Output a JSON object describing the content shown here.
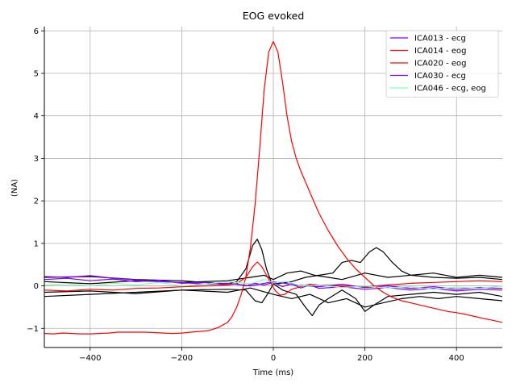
{
  "chart_data": {
    "type": "line",
    "title": "EOG evoked",
    "xlabel": "Time (ms)",
    "ylabel": "(NA)",
    "xlim": [
      -500,
      500
    ],
    "ylim": [
      -1.45,
      6.1
    ],
    "xticks": [
      -400,
      -200,
      0,
      200,
      400
    ],
    "yticks": [
      -1,
      0,
      1,
      2,
      3,
      4,
      5,
      6
    ],
    "xtick_labels": [
      "−400",
      "−200",
      "0",
      "200",
      "400"
    ],
    "ytick_labels": [
      "−1",
      "0",
      "1",
      "2",
      "3",
      "4",
      "5",
      "6"
    ],
    "grid": true,
    "legend_position": "top-right",
    "series": [
      {
        "name": "ICA013 - ecg",
        "color": "#8000ff",
        "points": [
          [
            -500,
            0.15
          ],
          [
            -450,
            0.18
          ],
          [
            -400,
            0.12
          ],
          [
            -350,
            0.16
          ],
          [
            -300,
            0.1
          ],
          [
            -250,
            0.13
          ],
          [
            -200,
            0.06
          ],
          [
            -150,
            0.08
          ],
          [
            -100,
            0.02
          ],
          [
            -80,
            0.05
          ],
          [
            -60,
            0.0
          ],
          [
            -40,
            0.06
          ],
          [
            -20,
            0.02
          ],
          [
            0,
            0.08
          ],
          [
            20,
            -0.02
          ],
          [
            40,
            0.05
          ],
          [
            60,
            -0.05
          ],
          [
            80,
            0.02
          ],
          [
            100,
            -0.06
          ],
          [
            150,
            -0.02
          ],
          [
            200,
            -0.08
          ],
          [
            250,
            -0.04
          ],
          [
            300,
            -0.1
          ],
          [
            350,
            -0.06
          ],
          [
            400,
            -0.12
          ],
          [
            450,
            -0.08
          ],
          [
            500,
            -0.1
          ]
        ]
      },
      {
        "name": "ICA014 - eog",
        "color": "#ff0000",
        "points": [
          [
            -500,
            -1.12
          ],
          [
            -480,
            -1.13
          ],
          [
            -460,
            -1.11
          ],
          [
            -440,
            -1.12
          ],
          [
            -420,
            -1.13
          ],
          [
            -400,
            -1.13
          ],
          [
            -380,
            -1.12
          ],
          [
            -360,
            -1.11
          ],
          [
            -340,
            -1.09
          ],
          [
            -320,
            -1.09
          ],
          [
            -300,
            -1.09
          ],
          [
            -280,
            -1.09
          ],
          [
            -260,
            -1.1
          ],
          [
            -240,
            -1.11
          ],
          [
            -220,
            -1.12
          ],
          [
            -200,
            -1.11
          ],
          [
            -180,
            -1.09
          ],
          [
            -160,
            -1.07
          ],
          [
            -140,
            -1.05
          ],
          [
            -120,
            -0.98
          ],
          [
            -100,
            -0.86
          ],
          [
            -90,
            -0.72
          ],
          [
            -80,
            -0.5
          ],
          [
            -70,
            -0.2
          ],
          [
            -60,
            0.2
          ],
          [
            -50,
            0.9
          ],
          [
            -40,
            1.9
          ],
          [
            -30,
            3.2
          ],
          [
            -20,
            4.6
          ],
          [
            -10,
            5.5
          ],
          [
            0,
            5.75
          ],
          [
            10,
            5.5
          ],
          [
            20,
            4.8
          ],
          [
            30,
            4.0
          ],
          [
            40,
            3.4
          ],
          [
            50,
            3.0
          ],
          [
            60,
            2.7
          ],
          [
            70,
            2.45
          ],
          [
            80,
            2.2
          ],
          [
            90,
            1.95
          ],
          [
            100,
            1.7
          ],
          [
            120,
            1.3
          ],
          [
            140,
            0.95
          ],
          [
            160,
            0.65
          ],
          [
            180,
            0.4
          ],
          [
            200,
            0.2
          ],
          [
            220,
            0.0
          ],
          [
            240,
            -0.15
          ],
          [
            260,
            -0.27
          ],
          [
            280,
            -0.35
          ],
          [
            300,
            -0.4
          ],
          [
            320,
            -0.45
          ],
          [
            340,
            -0.5
          ],
          [
            360,
            -0.55
          ],
          [
            380,
            -0.6
          ],
          [
            400,
            -0.63
          ],
          [
            420,
            -0.67
          ],
          [
            440,
            -0.72
          ],
          [
            460,
            -0.77
          ],
          [
            480,
            -0.81
          ],
          [
            500,
            -0.86
          ]
        ]
      },
      {
        "name": "ICA020 - eog",
        "color": "#ff0000",
        "points": [
          [
            -500,
            -0.1
          ],
          [
            -450,
            -0.12
          ],
          [
            -400,
            -0.08
          ],
          [
            -350,
            -0.1
          ],
          [
            -300,
            -0.06
          ],
          [
            -250,
            -0.05
          ],
          [
            -200,
            -0.02
          ],
          [
            -150,
            0.0
          ],
          [
            -100,
            0.02
          ],
          [
            -80,
            0.05
          ],
          [
            -60,
            0.2
          ],
          [
            -45,
            0.45
          ],
          [
            -35,
            0.56
          ],
          [
            -25,
            0.45
          ],
          [
            -15,
            0.25
          ],
          [
            -5,
            0.05
          ],
          [
            5,
            -0.12
          ],
          [
            15,
            -0.22
          ],
          [
            25,
            -0.2
          ],
          [
            40,
            -0.08
          ],
          [
            60,
            -0.02
          ],
          [
            80,
            0.04
          ],
          [
            100,
            0.02
          ],
          [
            150,
            0.0
          ],
          [
            200,
            -0.02
          ],
          [
            250,
            0.02
          ],
          [
            300,
            0.06
          ],
          [
            350,
            0.08
          ],
          [
            400,
            0.1
          ],
          [
            450,
            0.12
          ],
          [
            500,
            0.1
          ]
        ]
      },
      {
        "name": "ICA030 - ecg",
        "color": "#8000ff",
        "points": [
          [
            -500,
            0.22
          ],
          [
            -450,
            0.2
          ],
          [
            -400,
            0.24
          ],
          [
            -350,
            0.18
          ],
          [
            -300,
            0.14
          ],
          [
            -250,
            0.1
          ],
          [
            -200,
            0.08
          ],
          [
            -150,
            0.04
          ],
          [
            -100,
            0.06
          ],
          [
            -50,
            0.0
          ],
          [
            0,
            0.1
          ],
          [
            50,
            0.02
          ],
          [
            100,
            -0.02
          ],
          [
            150,
            0.04
          ],
          [
            200,
            -0.04
          ],
          [
            250,
            0.0
          ],
          [
            300,
            -0.06
          ],
          [
            350,
            -0.02
          ],
          [
            400,
            -0.08
          ],
          [
            450,
            -0.04
          ],
          [
            500,
            -0.06
          ]
        ]
      },
      {
        "name": "ICA046 - ecg, eog",
        "color": "#80ffb4",
        "points": [
          [
            -500,
            0.02
          ],
          [
            -450,
            0.05
          ],
          [
            -400,
            0.0
          ],
          [
            -350,
            0.06
          ],
          [
            -300,
            0.02
          ],
          [
            -250,
            0.08
          ],
          [
            -200,
            0.0
          ],
          [
            -150,
            0.04
          ],
          [
            -100,
            0.1
          ],
          [
            -50,
            0.05
          ],
          [
            -20,
            0.15
          ],
          [
            0,
            0.08
          ],
          [
            30,
            0.1
          ],
          [
            60,
            0.0
          ],
          [
            100,
            0.02
          ],
          [
            150,
            -0.04
          ],
          [
            200,
            0.0
          ],
          [
            250,
            -0.05
          ],
          [
            300,
            -0.02
          ],
          [
            350,
            -0.08
          ],
          [
            400,
            -0.03
          ],
          [
            450,
            -0.06
          ],
          [
            500,
            0.0
          ]
        ]
      },
      {
        "color": "#000000",
        "points": [
          [
            -500,
            0.2
          ],
          [
            -400,
            0.22
          ],
          [
            -300,
            0.15
          ],
          [
            -200,
            0.12
          ],
          [
            -150,
            0.08
          ],
          [
            -100,
            0.05
          ],
          [
            -80,
            0.1
          ],
          [
            -60,
            0.4
          ],
          [
            -45,
            0.95
          ],
          [
            -35,
            1.1
          ],
          [
            -25,
            0.85
          ],
          [
            -15,
            0.4
          ],
          [
            -5,
            0.1
          ],
          [
            10,
            0.05
          ],
          [
            40,
            0.1
          ],
          [
            70,
            0.2
          ],
          [
            100,
            0.25
          ],
          [
            130,
            0.3
          ],
          [
            150,
            0.55
          ],
          [
            170,
            0.6
          ],
          [
            190,
            0.55
          ],
          [
            210,
            0.8
          ],
          [
            225,
            0.9
          ],
          [
            240,
            0.8
          ],
          [
            260,
            0.55
          ],
          [
            280,
            0.35
          ],
          [
            300,
            0.25
          ],
          [
            350,
            0.2
          ],
          [
            400,
            0.18
          ],
          [
            450,
            0.2
          ],
          [
            500,
            0.15
          ]
        ]
      },
      {
        "color": "#000000",
        "points": [
          [
            -500,
            -0.25
          ],
          [
            -400,
            -0.2
          ],
          [
            -300,
            -0.15
          ],
          [
            -200,
            -0.1
          ],
          [
            -100,
            -0.08
          ],
          [
            -60,
            -0.1
          ],
          [
            -40,
            -0.35
          ],
          [
            -25,
            -0.4
          ],
          [
            -10,
            -0.15
          ],
          [
            0,
            0.05
          ],
          [
            20,
            -0.1
          ],
          [
            50,
            -0.2
          ],
          [
            70,
            -0.5
          ],
          [
            85,
            -0.7
          ],
          [
            100,
            -0.45
          ],
          [
            120,
            -0.3
          ],
          [
            150,
            -0.1
          ],
          [
            180,
            -0.3
          ],
          [
            200,
            -0.6
          ],
          [
            220,
            -0.45
          ],
          [
            250,
            -0.25
          ],
          [
            300,
            -0.2
          ],
          [
            350,
            -0.15
          ],
          [
            400,
            -0.2
          ],
          [
            450,
            -0.15
          ],
          [
            500,
            -0.25
          ]
        ]
      },
      {
        "color": "#000000",
        "points": [
          [
            -500,
            0.1
          ],
          [
            -400,
            0.05
          ],
          [
            -300,
            0.12
          ],
          [
            -200,
            0.08
          ],
          [
            -100,
            0.12
          ],
          [
            -50,
            0.2
          ],
          [
            -20,
            0.25
          ],
          [
            0,
            0.15
          ],
          [
            30,
            0.3
          ],
          [
            60,
            0.35
          ],
          [
            90,
            0.25
          ],
          [
            120,
            0.2
          ],
          [
            150,
            0.15
          ],
          [
            200,
            0.3
          ],
          [
            250,
            0.2
          ],
          [
            300,
            0.25
          ],
          [
            350,
            0.3
          ],
          [
            400,
            0.2
          ],
          [
            450,
            0.25
          ],
          [
            500,
            0.2
          ]
        ]
      },
      {
        "color": "#000000",
        "points": [
          [
            -500,
            -0.15
          ],
          [
            -400,
            -0.12
          ],
          [
            -300,
            -0.18
          ],
          [
            -200,
            -0.1
          ],
          [
            -100,
            -0.15
          ],
          [
            -50,
            -0.05
          ],
          [
            0,
            -0.2
          ],
          [
            40,
            -0.3
          ],
          [
            80,
            -0.2
          ],
          [
            120,
            -0.4
          ],
          [
            160,
            -0.3
          ],
          [
            200,
            -0.5
          ],
          [
            240,
            -0.4
          ],
          [
            280,
            -0.3
          ],
          [
            320,
            -0.25
          ],
          [
            360,
            -0.3
          ],
          [
            400,
            -0.25
          ],
          [
            450,
            -0.3
          ],
          [
            500,
            -0.35
          ]
        ]
      }
    ]
  }
}
